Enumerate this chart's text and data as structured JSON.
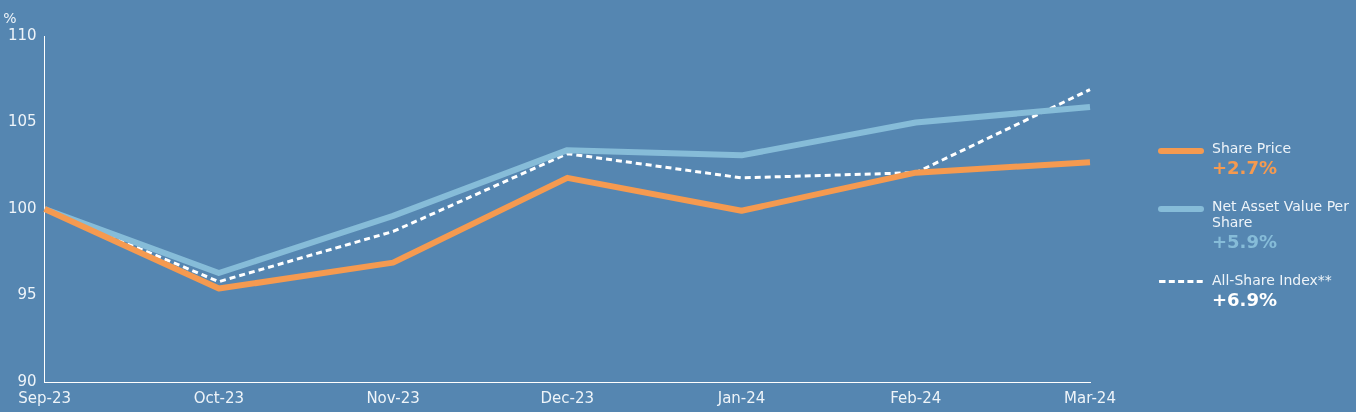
{
  "chart_data": {
    "type": "line",
    "ylabel": "%",
    "categories": [
      "Sep-23",
      "Oct-23",
      "Nov-23",
      "Dec-23",
      "Jan-24",
      "Feb-24",
      "Mar-24"
    ],
    "series": [
      {
        "name": "Share Price",
        "color": "#f59a50",
        "values": [
          100,
          95.4,
          96.9,
          101.8,
          99.9,
          102.1,
          102.7
        ]
      },
      {
        "name": "Net Asset Value Per Share",
        "color": "#86bcd8",
        "values": [
          100,
          96.3,
          99.6,
          103.4,
          103.1,
          105.0,
          105.9
        ]
      },
      {
        "name": "All-Share Index**",
        "color": "#ffffff",
        "line_style": "dashed",
        "values": [
          100,
          95.8,
          98.7,
          103.2,
          101.8,
          102.1,
          106.9
        ]
      }
    ],
    "annotations": [
      "+2.7%",
      "+5.9%",
      "+6.9%"
    ],
    "ylim": [
      90,
      110
    ],
    "yticks": [
      90,
      95,
      100,
      105,
      110
    ],
    "grid": false,
    "legend": "right",
    "marker": "none"
  }
}
